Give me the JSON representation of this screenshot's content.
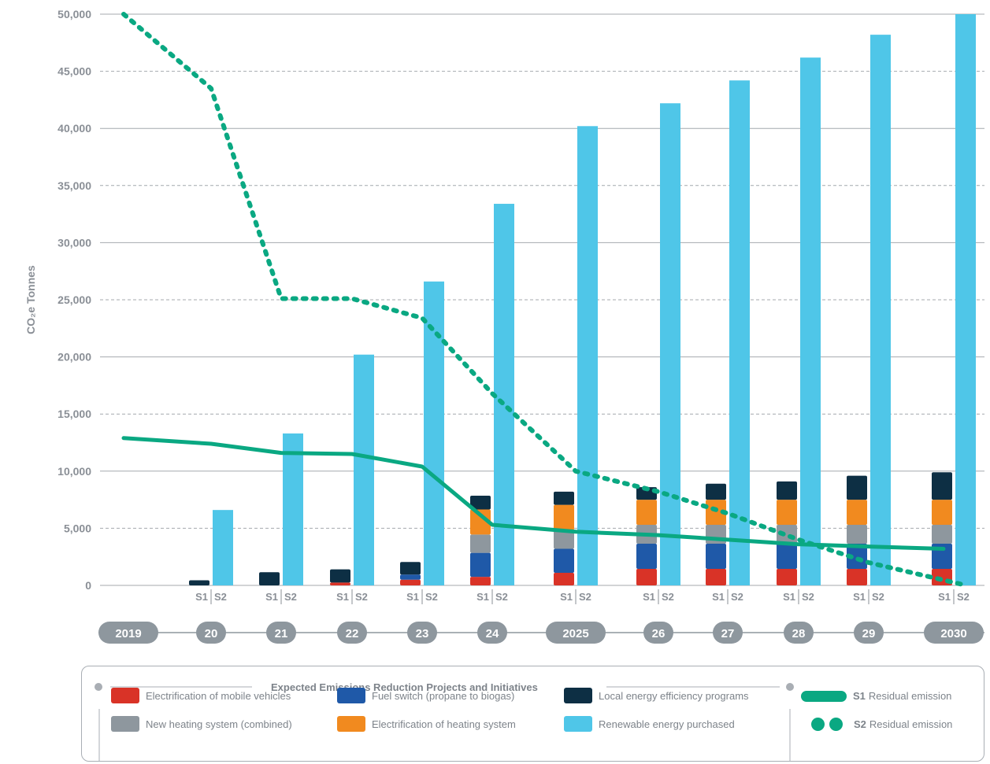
{
  "chart_data": {
    "type": "bar",
    "ylabel": "CO₂e Tonnes",
    "ylim": [
      0,
      50000
    ],
    "yticks": [
      "0",
      "5,000",
      "10,000",
      "15,000",
      "20,000",
      "25,000",
      "30,000",
      "35,000",
      "40,000",
      "45,000",
      "50,000"
    ],
    "categories": [
      "2019",
      "20",
      "21",
      "22",
      "23",
      "24",
      "2025",
      "26",
      "27",
      "28",
      "29",
      "2030"
    ],
    "bar_labels": [
      "S1",
      "S2"
    ],
    "s1_stacks": [
      {
        "name": "Electrification of mobile vehicles",
        "color": "#d93327",
        "values": [
          0,
          0,
          0,
          250,
          500,
          750,
          1100,
          1450,
          1450,
          1450,
          1450,
          1450
        ]
      },
      {
        "name": "Fuel switch (propane to biogas)",
        "color": "#1f59a8",
        "values": [
          0,
          0,
          0,
          0,
          450,
          2100,
          2100,
          2200,
          2200,
          2200,
          2200,
          2200
        ]
      },
      {
        "name": "New heating system (combined)",
        "color": "#8e979e",
        "values": [
          0,
          0,
          0,
          0,
          0,
          1600,
          1650,
          1650,
          1650,
          1650,
          1650,
          1650
        ]
      },
      {
        "name": "Electrification of heating system",
        "color": "#f18a1f",
        "values": [
          0,
          0,
          0,
          0,
          0,
          2200,
          2200,
          2200,
          2200,
          2200,
          2200,
          2200
        ]
      },
      {
        "name": "Local energy efficiency programs",
        "color": "#0d2f44",
        "values": [
          0,
          450,
          1150,
          1150,
          1100,
          1200,
          1150,
          1100,
          1400,
          1600,
          2100,
          2400
        ]
      }
    ],
    "s2_series": {
      "name": "Renewable energy purchased",
      "color": "#4fc6e8",
      "values": [
        0,
        6600,
        13300,
        20200,
        26600,
        33400,
        40200,
        42200,
        44200,
        46200,
        48200,
        50000
      ]
    },
    "lines": [
      {
        "name": "S1 Residual emission",
        "style": "solid",
        "color": "#0aa882",
        "values": [
          12900,
          12400,
          11600,
          11500,
          10400,
          5300,
          4700,
          4400,
          4000,
          3600,
          3400,
          3200
        ]
      },
      {
        "name": "S2 Residual emission",
        "style": "dotted",
        "color": "#0aa882",
        "values": [
          50000,
          43500,
          25100,
          25100,
          23400,
          16800,
          10000,
          8200,
          6300,
          4000,
          2000,
          0
        ]
      }
    ]
  },
  "legend": {
    "title": "Expected Emissions Reduction Projects and Initiatives",
    "items": [
      {
        "label": "Electrification of mobile vehicles",
        "color": "#d93327"
      },
      {
        "label": "Fuel switch (propane to biogas)",
        "color": "#1f59a8"
      },
      {
        "label": "Local energy efficiency programs",
        "color": "#0d2f44"
      },
      {
        "label": "New heating system (combined)",
        "color": "#8e979e"
      },
      {
        "label": "Electrification of heating system",
        "color": "#f18a1f"
      },
      {
        "label": "Renewable energy purchased",
        "color": "#4fc6e8"
      }
    ],
    "s1": {
      "prefix": "S1",
      "label": "Residual emission"
    },
    "s2": {
      "prefix": "S2",
      "label": "Residual emission"
    }
  },
  "colors": {
    "axis": "#8a8f96",
    "pill": "#8e979e",
    "line": "#0aa882"
  }
}
